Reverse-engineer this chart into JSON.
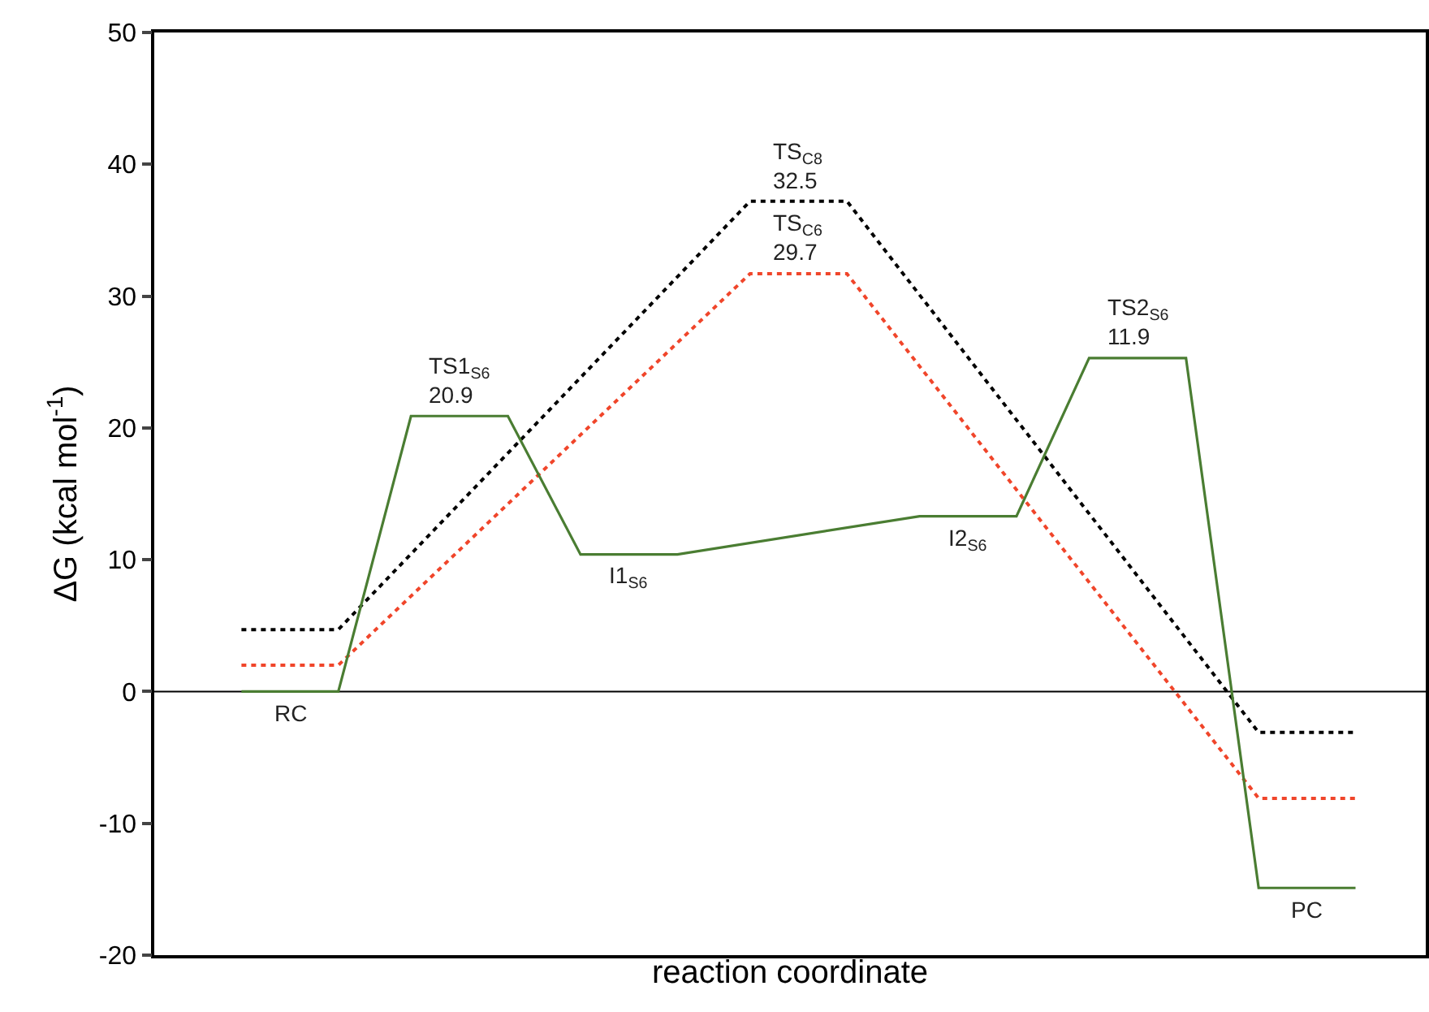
{
  "chart_data": {
    "type": "line",
    "xlabel": "reaction coordinate",
    "ylabel": "ΔG (kcal mol$^{-1}$)",
    "categories": [
      null,
      null,
      null,
      null,
      null,
      null,
      null,
      null,
      null,
      null,
      null,
      null,
      null,
      null,
      null,
      null,
      null,
      null,
      null,
      null,
      null,
      null,
      null,
      null,
      null,
      null,
      null,
      null,
      null,
      null,
      null,
      null,
      null,
      null,
      null,
      null,
      null,
      null,
      null,
      null,
      null,
      null,
      null,
      null,
      null,
      null,
      null
    ],
    "ylim": [
      -20,
      50
    ],
    "yticks": [
      -20,
      -10,
      0,
      10,
      20,
      30,
      40,
      50
    ],
    "tick_labels": "y",
    "grid": false,
    "marker": "none",
    "series": [
      {
        "color": "#000000",
        "line_style": "dotted",
        "values": [
          4.7,
          4.7,
          4.7,
          4.7,
          4.7,
          null,
          null,
          null,
          null,
          null,
          null,
          null,
          null,
          null,
          null,
          null,
          null,
          null,
          null,
          null,
          null,
          37.2,
          37.2,
          37.2,
          37.2,
          37.2,
          null,
          null,
          null,
          null,
          null,
          null,
          null,
          null,
          null,
          null,
          null,
          null,
          null,
          null,
          null,
          null,
          -3.1,
          -3.1,
          -3.1,
          -3.1,
          -3.1
        ]
      },
      {
        "color": "#f0452a",
        "line_style": "dotted",
        "values": [
          2.0,
          2.0,
          2.0,
          2.0,
          2.0,
          null,
          null,
          null,
          null,
          null,
          null,
          null,
          null,
          null,
          null,
          null,
          null,
          null,
          null,
          null,
          null,
          31.7,
          31.7,
          31.7,
          31.7,
          31.7,
          null,
          null,
          null,
          null,
          null,
          null,
          null,
          null,
          null,
          null,
          null,
          null,
          null,
          null,
          null,
          null,
          -8.1,
          -8.1,
          -8.1,
          -8.1,
          -8.1
        ]
      },
      {
        "color": "#4a7d32",
        "line_style": "solid",
        "values": [
          0,
          0,
          0,
          0,
          0,
          null,
          null,
          20.9,
          20.9,
          20.9,
          20.9,
          20.9,
          null,
          null,
          10.4,
          10.4,
          10.4,
          10.4,
          10.4,
          null,
          null,
          null,
          null,
          null,
          null,
          null,
          null,
          null,
          13.3,
          13.3,
          13.3,
          13.3,
          13.3,
          null,
          null,
          25.3,
          25.3,
          25.3,
          25.3,
          25.3,
          null,
          null,
          -14.9,
          -14.9,
          -14.9,
          -14.9,
          -14.9
        ]
      }
    ],
    "ref_lines": [
      {
        "axis": "y",
        "value": 0,
        "color": "#000000"
      }
    ],
    "annotations": [
      {
        "text": "RC",
        "y": 0
      },
      {
        "text": "TS1$_{S6}$\n20.9",
        "y": 20.9
      },
      {
        "text": "I1$_{S6}$",
        "y": 10.4
      },
      {
        "text": "TS$_{C8}$\n32.5",
        "y": 37.2
      },
      {
        "text": "TS$_{C6}$\n29.7",
        "y": 31.7
      },
      {
        "text": "I2$_{S6}$",
        "y": 13.3
      },
      {
        "text": "TS2$_{S6}$\n11.9",
        "y": 25.3
      },
      {
        "text": "PC",
        "y": -14.9
      }
    ]
  }
}
